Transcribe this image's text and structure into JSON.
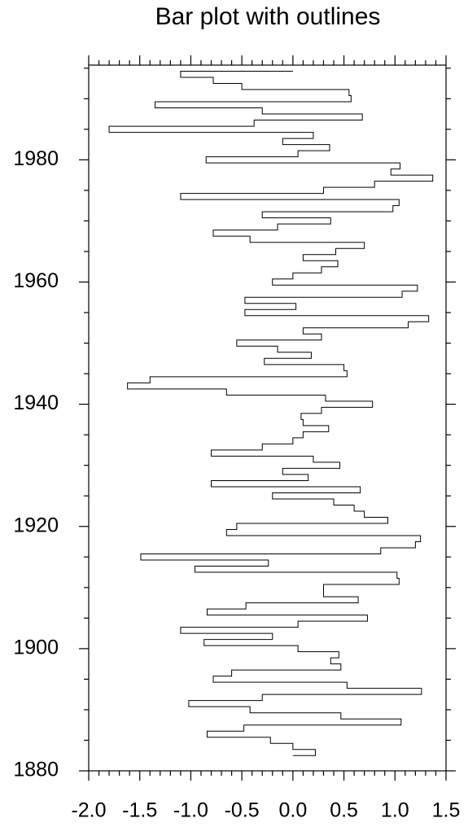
{
  "chart_data": {
    "type": "step-bar-outline",
    "title": "Bar plot with outlines",
    "x": [
      1883,
      1884,
      1885,
      1886,
      1887,
      1888,
      1889,
      1890,
      1891,
      1892,
      1893,
      1894,
      1895,
      1896,
      1897,
      1898,
      1899,
      1900,
      1901,
      1902,
      1903,
      1904,
      1905,
      1906,
      1907,
      1908,
      1909,
      1910,
      1911,
      1912,
      1913,
      1914,
      1915,
      1916,
      1917,
      1918,
      1919,
      1920,
      1921,
      1922,
      1923,
      1924,
      1925,
      1926,
      1927,
      1928,
      1929,
      1930,
      1931,
      1932,
      1933,
      1934,
      1935,
      1936,
      1937,
      1938,
      1939,
      1940,
      1941,
      1942,
      1943,
      1944,
      1945,
      1946,
      1947,
      1948,
      1949,
      1950,
      1951,
      1952,
      1953,
      1954,
      1955,
      1956,
      1957,
      1958,
      1959,
      1960,
      1961,
      1962,
      1963,
      1964,
      1965,
      1966,
      1967,
      1968,
      1969,
      1970,
      1971,
      1972,
      1973,
      1974,
      1975,
      1976,
      1977,
      1978,
      1979,
      1980,
      1981,
      1982,
      1983,
      1984,
      1985,
      1986,
      1987,
      1988,
      1989,
      1990,
      1991,
      1992,
      1993,
      1994
    ],
    "series": [
      {
        "color": "#000000",
        "values": [
          0.22,
          0.0,
          -0.22,
          -0.84,
          -0.48,
          1.06,
          0.47,
          -0.42,
          -1.02,
          -0.3,
          1.26,
          0.53,
          -0.78,
          -0.6,
          0.47,
          0.37,
          0.45,
          0.05,
          -0.87,
          -0.2,
          -1.1,
          0.05,
          0.73,
          -0.84,
          -0.46,
          0.64,
          0.3,
          0.3,
          1.04,
          1.02,
          -0.96,
          -0.24,
          -1.49,
          0.86,
          1.2,
          1.25,
          -0.65,
          -0.55,
          0.93,
          0.7,
          0.6,
          0.4,
          -0.2,
          0.66,
          -0.8,
          0.15,
          -0.1,
          0.46,
          0.2,
          -0.8,
          -0.3,
          0.0,
          0.1,
          0.35,
          0.1,
          0.08,
          0.28,
          0.78,
          0.32,
          -0.65,
          -1.62,
          -1.4,
          0.53,
          0.5,
          -0.28,
          0.18,
          -0.15,
          -0.55,
          0.28,
          0.1,
          1.13,
          1.33,
          -0.47,
          0.03,
          -0.47,
          1.07,
          1.22,
          -0.2,
          0.0,
          0.28,
          0.44,
          0.1,
          0.42,
          0.7,
          -0.42,
          -0.78,
          -0.15,
          0.37,
          -0.3,
          0.98,
          1.04,
          -1.1,
          0.3,
          0.8,
          1.37,
          0.96,
          1.05,
          -0.85,
          0.05,
          0.36,
          -0.1,
          0.2,
          -1.8,
          -0.38,
          0.68,
          -0.3,
          -1.35,
          0.57,
          0.55,
          -0.5,
          -0.78,
          -1.1
        ]
      }
    ],
    "xlim": [
      -2.0,
      1.5
    ],
    "xticks": [
      {
        "value": -2.0,
        "label": "-2.0"
      },
      -1.5,
      {
        "value": -1.0,
        "label": "-1.0"
      },
      -0.5,
      {
        "value": 0.0,
        "label": "0.0"
      },
      0.5,
      {
        "value": 1.0,
        "label": "1.0"
      },
      1.5
    ],
    "ylim": [
      1880,
      1995.5
    ],
    "yticks": [
      1880,
      1900,
      1920,
      1940,
      1960,
      1980
    ],
    "xminorticks": [
      -1.9,
      -1.8,
      -1.7,
      -1.6,
      -1.4,
      -1.3,
      -1.2,
      -1.1,
      -0.9,
      -0.8,
      -0.7,
      -0.6,
      -0.4,
      -0.3,
      -0.2,
      -0.1,
      0.1,
      0.2,
      0.3,
      0.4,
      0.6,
      0.7,
      0.8,
      0.9,
      1.1,
      1.2,
      1.3,
      1.4
    ],
    "yminorticks": [
      1885,
      1890,
      1895,
      1905,
      1910,
      1915,
      1925,
      1930,
      1935,
      1945,
      1950,
      1955,
      1965,
      1970,
      1975,
      1985,
      1990,
      1995
    ]
  }
}
